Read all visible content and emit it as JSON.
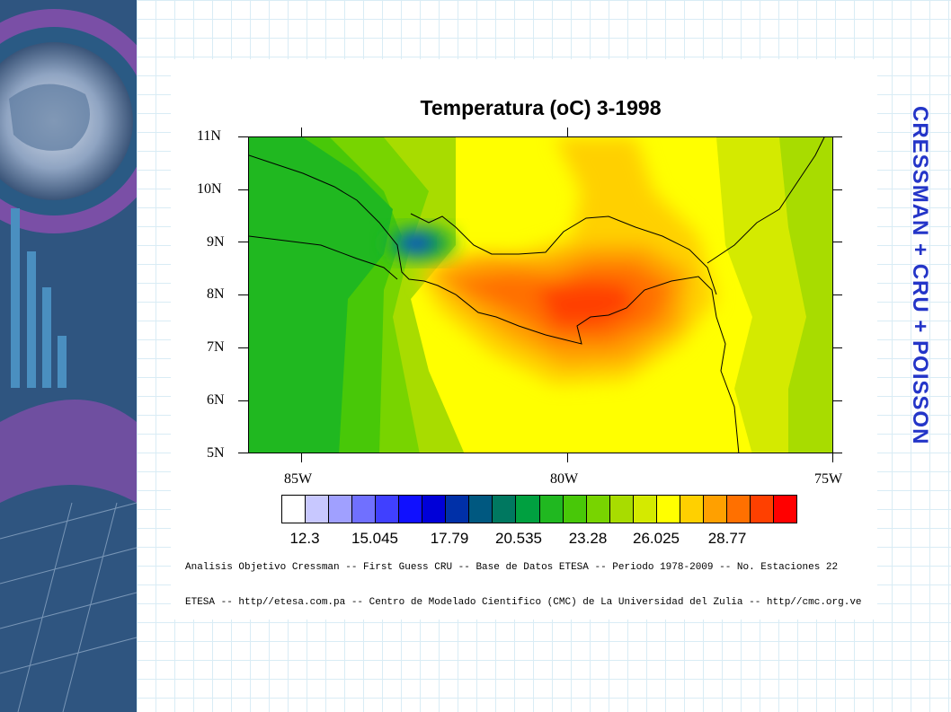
{
  "slide": {
    "side_title": "CRESSMAN + CRU + POISSON"
  },
  "map": {
    "title": "Temperatura (oC)  3-1998",
    "lat_labels": [
      "11N",
      "10N",
      "9N",
      "8N",
      "7N",
      "6N",
      "5N"
    ],
    "lon_labels": [
      "85W",
      "80W",
      "75W"
    ],
    "colorbar": {
      "colors": [
        "#ffffff",
        "#c8c8ff",
        "#a0a0ff",
        "#7070ff",
        "#4040ff",
        "#1010ff",
        "#0000d8",
        "#0030a8",
        "#005880",
        "#007860",
        "#00a040",
        "#20b820",
        "#48c808",
        "#78d400",
        "#a8dc00",
        "#d4ea00",
        "#ffff00",
        "#ffd000",
        "#ffa000",
        "#ff7000",
        "#ff4000",
        "#ff0000"
      ],
      "labels": [
        "12.3",
        "15.045",
        "17.79",
        "20.535",
        "23.28",
        "26.025",
        "28.77"
      ]
    },
    "footer": {
      "line1": "Analisis Objetivo Cressman  -- First Guess CRU -- Base de Datos ETESA -- Periodo 1978-2009  -- No. Estaciones 22",
      "line2": "ETESA  --  http//etesa.com.pa -- Centro de Modelado Cientifico (CMC) de La Universidad del Zulia -- http//cmc.org.ve"
    }
  }
}
